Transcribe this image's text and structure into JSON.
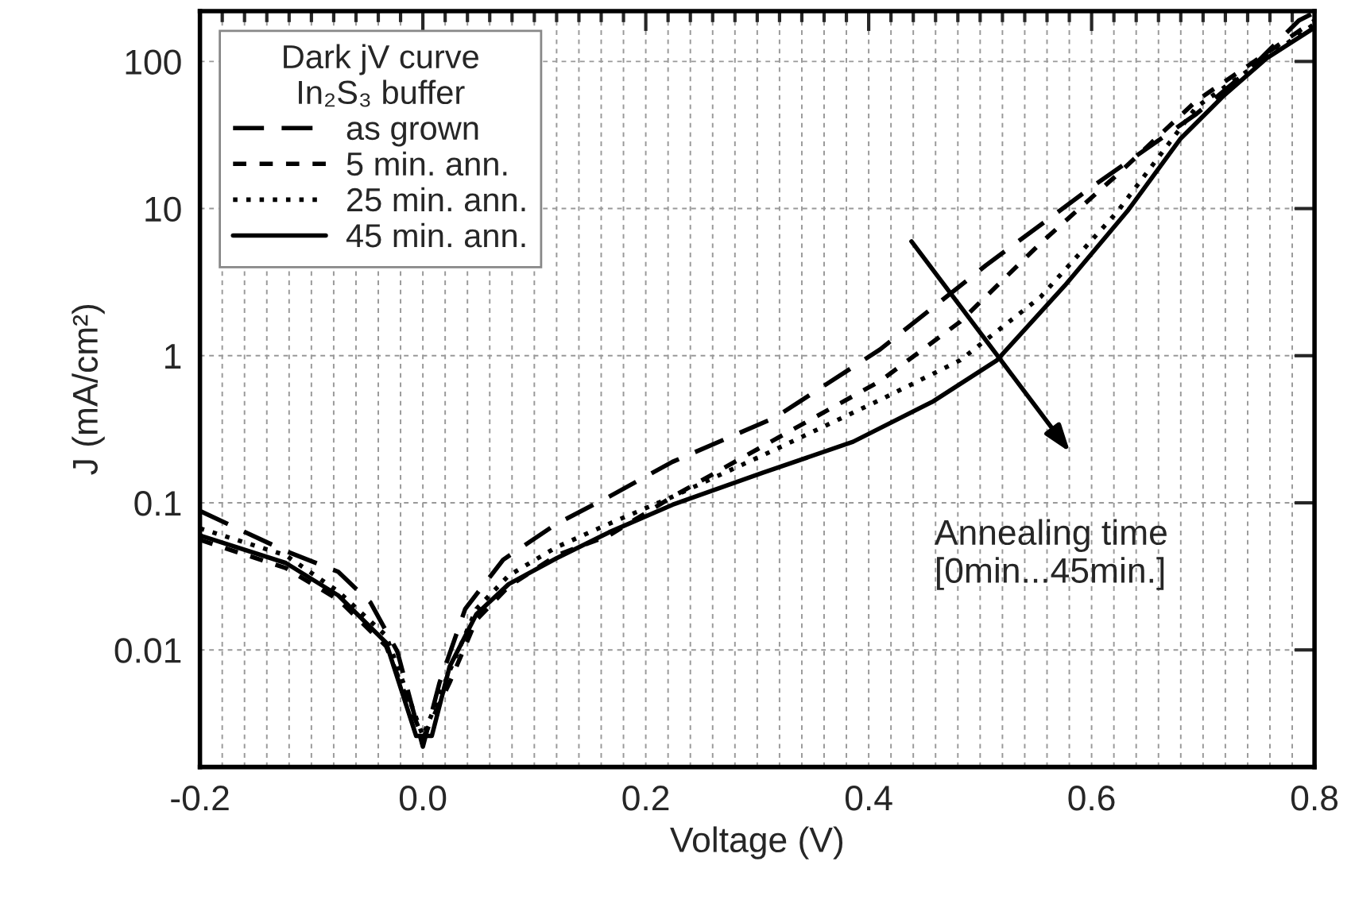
{
  "chart_data": {
    "type": "line",
    "xlabel": "Voltage (V)",
    "ylabel": "J (mA/cm²)",
    "legend_title": "Dark jV curve\nIn₂S₃ buffer",
    "legend": "top left",
    "log": "y",
    "grid": true,
    "xlim": [
      -0.2,
      0.8
    ],
    "xticks": [
      {
        "value": -0.2,
        "label": "-0.2"
      },
      {
        "value": 0.0,
        "label": "0.0"
      },
      0.2,
      0.4,
      0.6,
      0.8
    ],
    "ylim": [
      0.0016,
      220
    ],
    "yticks": [
      0.01,
      0.1,
      1,
      10,
      100
    ],
    "series": [
      {
        "name": "as grown",
        "color": "#000000",
        "line_style": "dashed",
        "x": [
          -0.2,
          -0.123,
          -0.076,
          -0.047,
          -0.023,
          0.0,
          0.015,
          0.038,
          0.072,
          0.12,
          0.167,
          0.224,
          0.316,
          0.41,
          0.505,
          0.6,
          0.694,
          0.743,
          0.786,
          0.8
        ],
        "values": [
          0.088,
          0.047,
          0.034,
          0.021,
          0.0098,
          0.0022,
          0.006,
          0.019,
          0.041,
          0.072,
          0.11,
          0.19,
          0.38,
          1.1,
          4.1,
          14,
          44,
          90,
          190,
          215
        ]
      },
      {
        "name": "5 min. ann.",
        "color": "#000000",
        "line_style": "short dashed",
        "x": [
          -0.2,
          -0.123,
          -0.076,
          -0.033,
          0.0,
          0.024,
          0.048,
          0.077,
          0.12,
          0.167,
          0.224,
          0.316,
          0.41,
          0.482,
          0.554,
          0.623,
          0.694,
          0.8
        ],
        "values": [
          0.056,
          0.036,
          0.022,
          0.0106,
          0.0025,
          0.006,
          0.016,
          0.027,
          0.044,
          0.06,
          0.11,
          0.27,
          0.67,
          1.7,
          5.8,
          17,
          54,
          190
        ]
      },
      {
        "name": "25 min. ann.",
        "color": "#000000",
        "line_style": "dotted",
        "x": [
          -0.2,
          -0.123,
          -0.076,
          -0.033,
          0.0,
          0.024,
          0.048,
          0.077,
          0.12,
          0.167,
          0.224,
          0.316,
          0.41,
          0.482,
          0.554,
          0.623,
          0.694,
          0.8
        ],
        "values": [
          0.067,
          0.044,
          0.025,
          0.0125,
          0.0026,
          0.0072,
          0.019,
          0.032,
          0.05,
          0.072,
          0.11,
          0.23,
          0.5,
          0.93,
          2.5,
          9.5,
          49,
          180
        ]
      },
      {
        "name": "45 min. ann.",
        "color": "#000000",
        "line_style": "solid",
        "x": [
          -0.2,
          -0.123,
          -0.076,
          -0.033,
          -0.006,
          0.008,
          0.024,
          0.048,
          0.077,
          0.12,
          0.167,
          0.224,
          0.305,
          0.386,
          0.458,
          0.515,
          0.576,
          0.633,
          0.68,
          0.719,
          0.757,
          0.8
        ],
        "values": [
          0.06,
          0.039,
          0.0235,
          0.0112,
          0.0026,
          0.0026,
          0.0077,
          0.0175,
          0.028,
          0.042,
          0.063,
          0.097,
          0.16,
          0.26,
          0.49,
          0.93,
          3.0,
          9.8,
          30,
          59,
          105,
          170
        ]
      }
    ],
    "annotations": [
      "Annealing time\n[0min...45min.]"
    ]
  }
}
